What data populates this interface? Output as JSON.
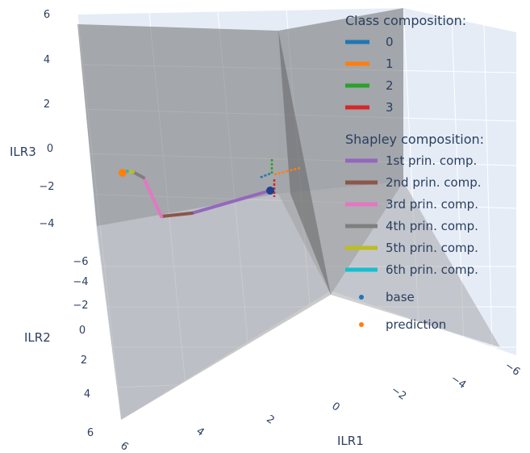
{
  "chart_data": {
    "type": "scatter3d",
    "axes": {
      "x": {
        "title": "ILR1",
        "ticks": [
          "-6",
          "-4",
          "-2",
          "0",
          "2",
          "4",
          "6"
        ],
        "range": [
          -6,
          6
        ]
      },
      "y": {
        "title": "ILR2",
        "ticks": [
          "-6",
          "-4",
          "-2",
          "0",
          "2",
          "4",
          "6"
        ],
        "range": [
          -6,
          6
        ]
      },
      "z": {
        "title": "ILR3",
        "ticks": [
          "6",
          "4",
          "2",
          "0",
          "-2",
          "-4"
        ],
        "range": [
          -6,
          6
        ]
      }
    },
    "legend": {
      "position": "top-right",
      "class_title": "Class composition:",
      "classes": [
        {
          "name": "0",
          "color": "#1f77b4"
        },
        {
          "name": "1",
          "color": "#ff7f0e"
        },
        {
          "name": "2",
          "color": "#2ca02c"
        },
        {
          "name": "3",
          "color": "#d62728"
        }
      ],
      "shapley_title": "Shapley composition:",
      "shapley": [
        {
          "name": "1st prin. comp.",
          "color": "#9467bd"
        },
        {
          "name": "2nd prin. comp.",
          "color": "#8c564b"
        },
        {
          "name": "3rd prin. comp.",
          "color": "#e377c2"
        },
        {
          "name": "4th prin. comp.",
          "color": "#7f7f7f"
        },
        {
          "name": "5th prin. comp.",
          "color": "#bcbd22"
        },
        {
          "name": "6th prin. comp.",
          "color": "#17becf"
        }
      ],
      "points": [
        {
          "name": "base",
          "color": "#1f77b4"
        },
        {
          "name": "prediction",
          "color": "#ff7f0e"
        }
      ]
    }
  }
}
